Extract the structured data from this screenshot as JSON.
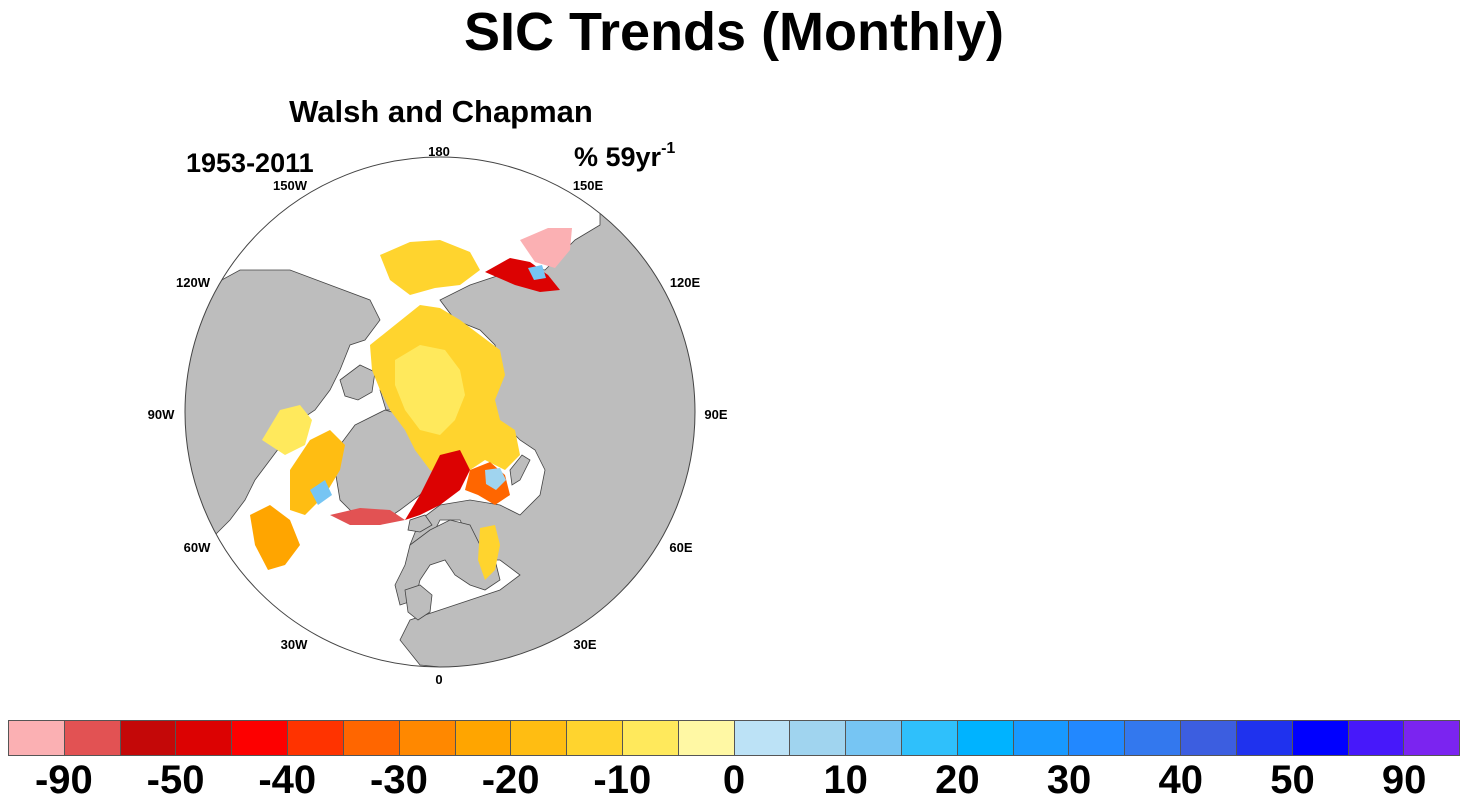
{
  "title": "SIC Trends (Monthly)",
  "panel": {
    "dataset": "Walsh and Chapman",
    "period": "1953-2011",
    "units_prefix": "% 59yr",
    "units_exponent": "-1"
  },
  "map": {
    "projection": "north-polar-stereographic",
    "longitude_labels": [
      "180",
      "150E",
      "120E",
      "90E",
      "60E",
      "30E",
      "0",
      "30W",
      "60W",
      "90W",
      "120W",
      "150W"
    ],
    "colors": {
      "land": "#bdbdbd",
      "ocean": "#ffffff",
      "coastline": "#444444"
    }
  },
  "colorbar": {
    "colors": [
      "#fbb0b3",
      "#e25253",
      "#c40808",
      "#dc0202",
      "#fd0000",
      "#ff3300",
      "#ff6600",
      "#ff8800",
      "#ffa500",
      "#ffbd12",
      "#ffd42e",
      "#ffe95c",
      "#fff8a4",
      "#bce2f6",
      "#a0d4ef",
      "#76c5f3",
      "#2fc0fb",
      "#00b3ff",
      "#1899ff",
      "#2288ff",
      "#3378ee",
      "#3c5ee0",
      "#1f32ee",
      "#0000ff",
      "#4718fa",
      "#7b24f0"
    ],
    "tick_labels": [
      "-90",
      "-50",
      "-40",
      "-30",
      "-20",
      "-10",
      "0",
      "10",
      "20",
      "30",
      "40",
      "50",
      "90"
    ]
  }
}
